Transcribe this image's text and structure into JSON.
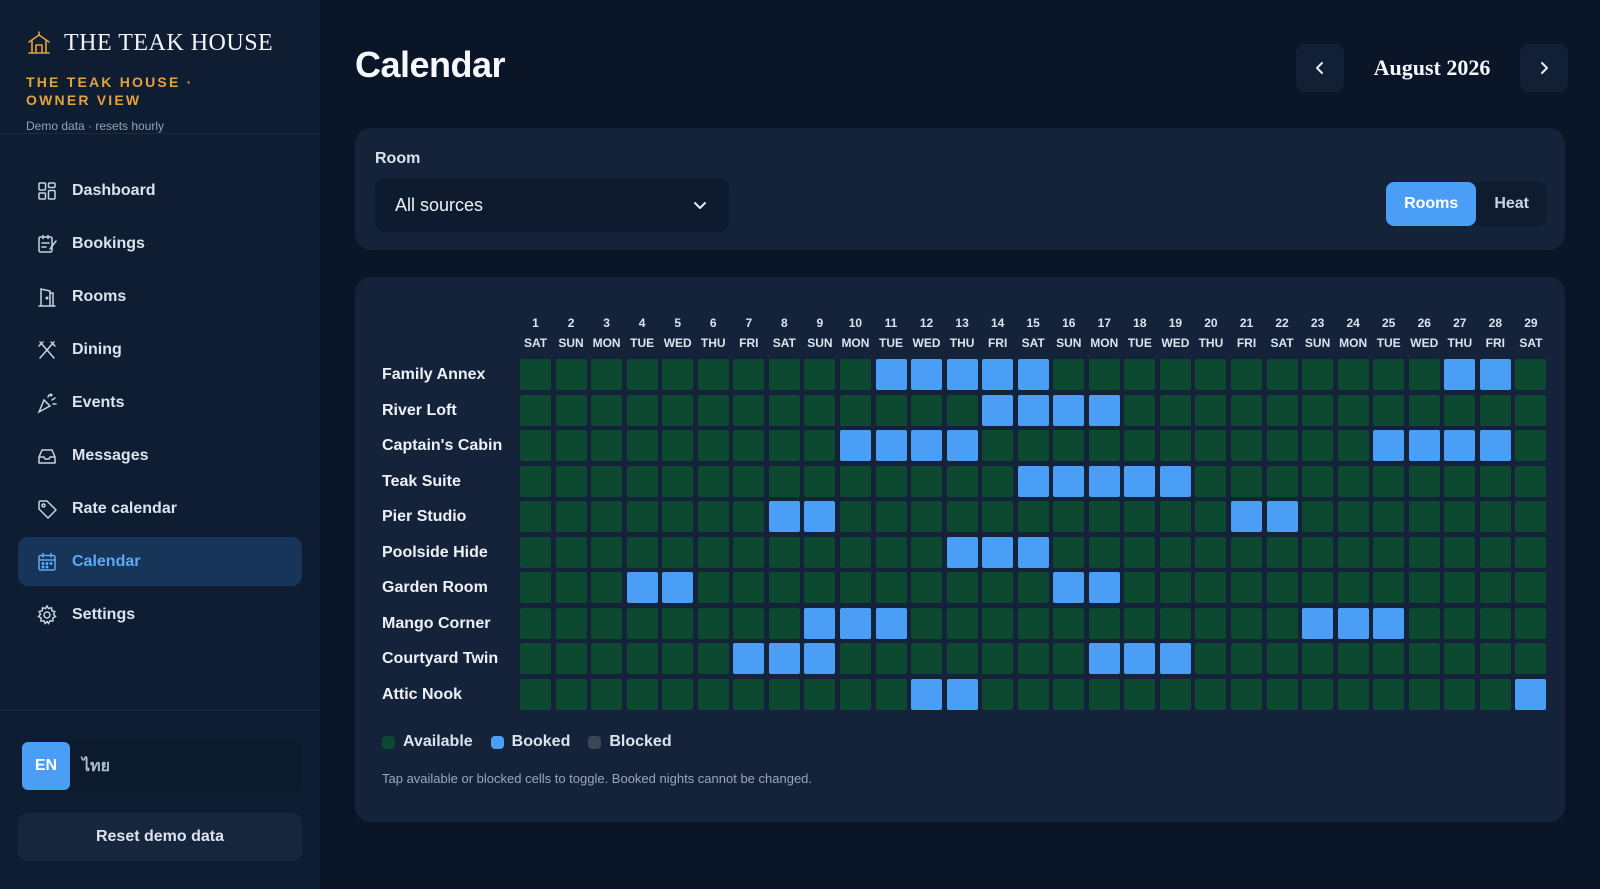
{
  "brand": {
    "name": "THE TEAK HOUSE",
    "subtitle": "THE TEAK HOUSE · OWNER VIEW",
    "demo_note": "Demo data · resets hourly"
  },
  "sidebar": {
    "items": [
      {
        "label": "Dashboard",
        "icon": "dashboard-icon",
        "active": false
      },
      {
        "label": "Bookings",
        "icon": "bookings-icon",
        "active": false
      },
      {
        "label": "Rooms",
        "icon": "rooms-icon",
        "active": false
      },
      {
        "label": "Dining",
        "icon": "dining-icon",
        "active": false
      },
      {
        "label": "Events",
        "icon": "events-icon",
        "active": false
      },
      {
        "label": "Messages",
        "icon": "messages-icon",
        "active": false
      },
      {
        "label": "Rate calendar",
        "icon": "tag-icon",
        "active": false
      },
      {
        "label": "Calendar",
        "icon": "calendar-icon",
        "active": true
      },
      {
        "label": "Settings",
        "icon": "gear-icon",
        "active": false
      }
    ],
    "lang_en": "EN",
    "lang_th": "ไทย",
    "reset_label": "Reset demo data"
  },
  "header": {
    "title": "Calendar",
    "month": "August 2026"
  },
  "filter": {
    "room_label": "Room",
    "room_value": "All sources",
    "view_options": [
      "Rooms",
      "Heat"
    ],
    "selected_view": "Rooms"
  },
  "calendar": {
    "days": [
      {
        "n": "1",
        "w": "SAT"
      },
      {
        "n": "2",
        "w": "SUN"
      },
      {
        "n": "3",
        "w": "MON"
      },
      {
        "n": "4",
        "w": "TUE"
      },
      {
        "n": "5",
        "w": "WED"
      },
      {
        "n": "6",
        "w": "THU"
      },
      {
        "n": "7",
        "w": "FRI"
      },
      {
        "n": "8",
        "w": "SAT"
      },
      {
        "n": "9",
        "w": "SUN"
      },
      {
        "n": "10",
        "w": "MON"
      },
      {
        "n": "11",
        "w": "TUE"
      },
      {
        "n": "12",
        "w": "WED"
      },
      {
        "n": "13",
        "w": "THU"
      },
      {
        "n": "14",
        "w": "FRI"
      },
      {
        "n": "15",
        "w": "SAT"
      },
      {
        "n": "16",
        "w": "SUN"
      },
      {
        "n": "17",
        "w": "MON"
      },
      {
        "n": "18",
        "w": "TUE"
      },
      {
        "n": "19",
        "w": "WED"
      },
      {
        "n": "20",
        "w": "THU"
      },
      {
        "n": "21",
        "w": "FRI"
      },
      {
        "n": "22",
        "w": "SAT"
      },
      {
        "n": "23",
        "w": "SUN"
      },
      {
        "n": "24",
        "w": "MON"
      },
      {
        "n": "25",
        "w": "TUE"
      },
      {
        "n": "26",
        "w": "WED"
      },
      {
        "n": "27",
        "w": "THU"
      },
      {
        "n": "28",
        "w": "FRI"
      },
      {
        "n": "29",
        "w": "SAT"
      }
    ],
    "rooms": [
      {
        "name": "Family Annex",
        "booked": [
          11,
          12,
          13,
          14,
          15,
          27,
          28
        ]
      },
      {
        "name": "River Loft",
        "booked": [
          14,
          15,
          16,
          17
        ]
      },
      {
        "name": "Captain's Cabin",
        "booked": [
          10,
          11,
          12,
          13,
          25,
          26,
          27,
          28
        ]
      },
      {
        "name": "Teak Suite",
        "booked": [
          15,
          16,
          17,
          18,
          19
        ]
      },
      {
        "name": "Pier Studio",
        "booked": [
          8,
          9,
          21,
          22
        ]
      },
      {
        "name": "Poolside Hide",
        "booked": [
          13,
          14,
          15
        ]
      },
      {
        "name": "Garden Room",
        "booked": [
          4,
          5,
          16,
          17
        ]
      },
      {
        "name": "Mango Corner",
        "booked": [
          9,
          10,
          11,
          23,
          24,
          25
        ]
      },
      {
        "name": "Courtyard Twin",
        "booked": [
          7,
          8,
          9,
          17,
          18,
          19
        ]
      },
      {
        "name": "Attic Nook",
        "booked": [
          12,
          13,
          29
        ]
      }
    ],
    "legend": [
      {
        "label": "Available",
        "color": "#0d4830"
      },
      {
        "label": "Booked",
        "color": "#4a9ef5"
      },
      {
        "label": "Blocked",
        "color": "#3a4556"
      }
    ],
    "hint": "Tap available or blocked cells to toggle. Booked nights cannot be changed."
  },
  "colors": {
    "accent": "#4a9ef5",
    "brand_gold": "#e3a23b",
    "available": "#0d4830",
    "booked": "#4a9ef5",
    "blocked": "#3a4556"
  }
}
